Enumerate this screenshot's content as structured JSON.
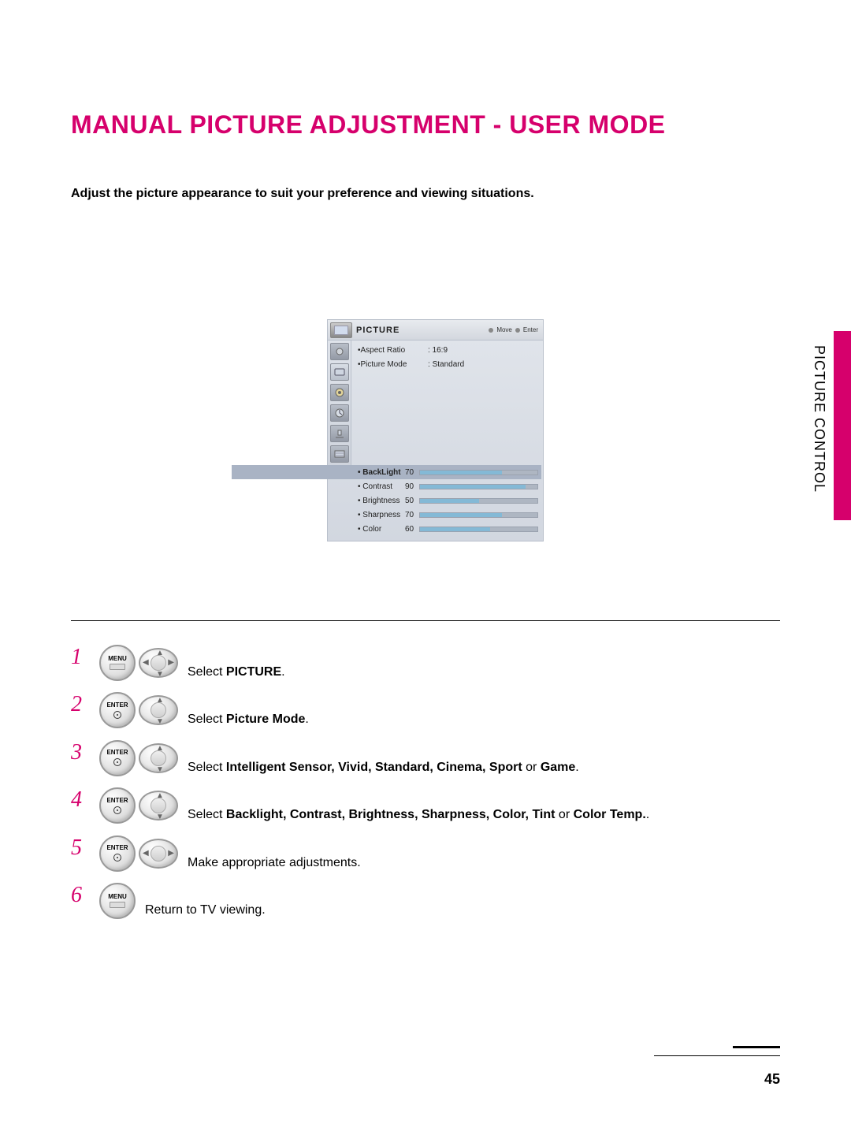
{
  "colors": {
    "accent": "#d6006c",
    "osd_bg": "#d8dce3",
    "slider_fill": "#84b9d6",
    "slider_track": "#aeb6c2"
  },
  "title": "MANUAL PICTURE ADJUSTMENT - USER MODE",
  "intro": "Adjust the picture appearance to suit your preference and viewing situations.",
  "side_tab_label": "PICTURE CONTROL",
  "page_number": "45",
  "osd": {
    "header_title": "PICTURE",
    "hint_move": "Move",
    "hint_enter": "Enter",
    "left_items": [
      {
        "label": "Aspect Ratio",
        "value": "16:9"
      },
      {
        "label": "Picture Mode",
        "value": "Standard"
      }
    ],
    "sliders": [
      {
        "label": "BackLight",
        "value": 70,
        "highlight": true
      },
      {
        "label": "Contrast",
        "value": 90
      },
      {
        "label": "Brightness",
        "value": 50
      },
      {
        "label": "Sharpness",
        "value": 70
      },
      {
        "label": "Color",
        "value": 60
      }
    ],
    "scale_max": 100
  },
  "steps": [
    {
      "n": "1",
      "buttons": [
        "menu",
        "dpad4"
      ],
      "text_pre": "Select ",
      "bold": "PICTURE",
      "text_post": "."
    },
    {
      "n": "2",
      "buttons": [
        "enter",
        "dpadud"
      ],
      "text_pre": "Select ",
      "bold": "Picture Mode",
      "text_post": "."
    },
    {
      "n": "3",
      "buttons": [
        "enter",
        "dpadud"
      ],
      "text_pre": "Select ",
      "bold": "Intelligent Sensor, Vivid, Standard, Cinema, Sport",
      "mid": " or ",
      "bold2": "Game",
      "text_post": "."
    },
    {
      "n": "4",
      "buttons": [
        "enter",
        "dpadud"
      ],
      "text_pre": "Select ",
      "bold": "Backlight, Contrast, Brightness, Sharpness, Color, Tint",
      "mid": " or ",
      "bold2": "Color Temp.",
      "text_post": "."
    },
    {
      "n": "5",
      "buttons": [
        "enter",
        "dpadlr"
      ],
      "plain": "Make appropriate adjustments."
    },
    {
      "n": "6",
      "buttons": [
        "menu"
      ],
      "plain": "Return to TV viewing."
    }
  ],
  "key_labels": {
    "menu": "MENU",
    "enter": "ENTER"
  }
}
